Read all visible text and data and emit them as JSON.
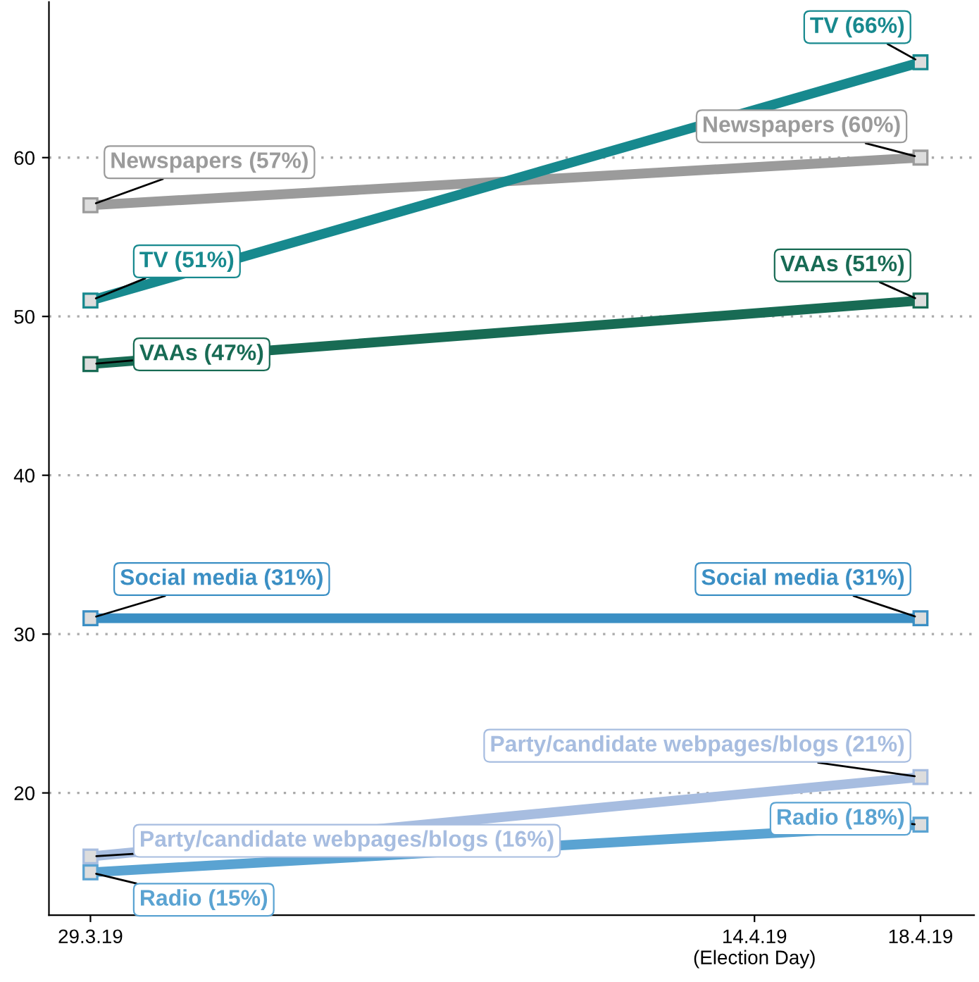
{
  "chart_data": {
    "type": "line",
    "x": [
      "2019-03-29",
      "2019-04-18"
    ],
    "series": [
      {
        "color": "#9b9b9b",
        "values": [
          57,
          60
        ]
      },
      {
        "color": "#17898e",
        "values": [
          51,
          66
        ]
      },
      {
        "color": "#186b54",
        "values": [
          47,
          51
        ]
      },
      {
        "color": "#3b8fc4",
        "values": [
          31,
          31
        ]
      },
      {
        "color": "#a7bde0",
        "values": [
          16,
          21
        ]
      },
      {
        "color": "#5aa3d2",
        "values": [
          15,
          18
        ]
      }
    ],
    "annotations": [
      {
        "text": "Newspapers (57%)",
        "x": "2019-03-29",
        "y": 57
      },
      {
        "text": "Newspapers (60%)",
        "x": "2019-04-18",
        "y": 60
      },
      {
        "text": "TV (51%)",
        "x": "2019-03-29",
        "y": 51
      },
      {
        "text": "TV (66%)",
        "x": "2019-04-18",
        "y": 66
      },
      {
        "text": "VAAs (47%)",
        "x": "2019-03-29",
        "y": 47
      },
      {
        "text": "VAAs (51%)",
        "x": "2019-04-18",
        "y": 51
      },
      {
        "text": "Social media (31%)",
        "x": "2019-03-29",
        "y": 31
      },
      {
        "text": "Social media (31%)",
        "x": "2019-04-18",
        "y": 31
      },
      {
        "text": "Party/candidate webpages/blogs (16%)",
        "x": "2019-03-29",
        "y": 16
      },
      {
        "text": "Party/candidate webpages/blogs (21%)",
        "x": "2019-04-18",
        "y": 21
      },
      {
        "text": "Radio (15%)",
        "x": "2019-03-29",
        "y": 15
      },
      {
        "text": "Radio (18%)",
        "x": "2019-04-18",
        "y": 18
      }
    ],
    "xlim": [
      "2019-03-28",
      "2019-04-19T07:00"
    ],
    "xticks": [
      {
        "value": "2019-03-29",
        "label": "29.3.19"
      },
      {
        "value": "2019-04-14",
        "label": "14.4.19\n(Election Day)"
      },
      {
        "value": "2019-04-18",
        "label": "18.4.19"
      }
    ],
    "ylim": [
      12.3,
      69.8
    ],
    "yticks": [
      20,
      30,
      40,
      50,
      60
    ],
    "grid": "y",
    "legend": false,
    "marker": "square",
    "line_style": "solid"
  }
}
